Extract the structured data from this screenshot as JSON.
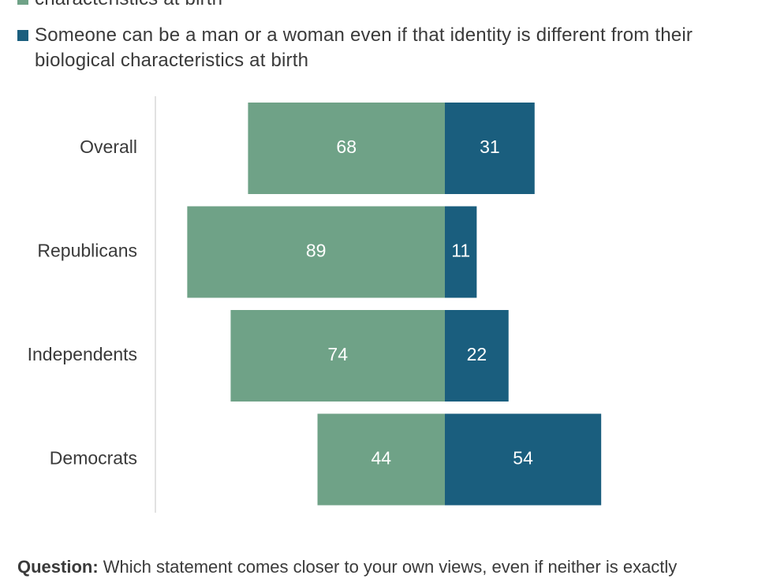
{
  "legend": {
    "items": [
      {
        "label": "characteristics at birth",
        "color": "#6fa287"
      },
      {
        "label": "Someone can be a man or a woman even if that identity is different from their biological characteristics at birth",
        "color": "#1a5e7e"
      }
    ]
  },
  "chart_data": {
    "type": "bar",
    "orientation": "horizontal",
    "stacked": "diverging",
    "categories": [
      "Overall",
      "Republicans",
      "Independents",
      "Democrats"
    ],
    "series": [
      {
        "values": [
          68,
          89,
          74,
          44
        ],
        "color": "#6fa287"
      },
      {
        "values": [
          31,
          11,
          22,
          54
        ],
        "color": "#1a5e7e"
      }
    ],
    "data_labels": true,
    "grid": false,
    "legend_position": "top"
  },
  "footnote": {
    "label": "Question:",
    "text": "Which statement comes closer to your own views, even if neither is exactly"
  }
}
